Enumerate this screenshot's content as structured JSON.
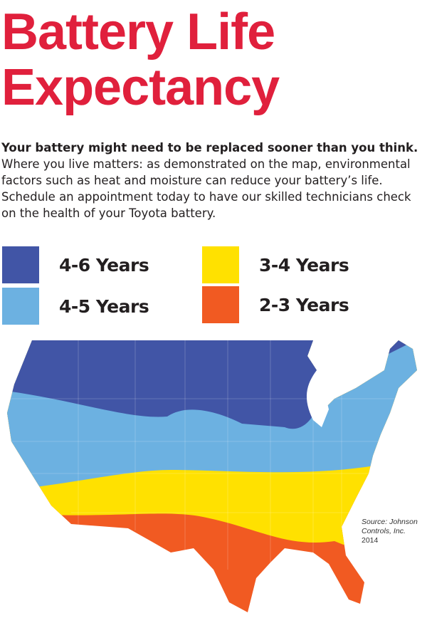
{
  "title": {
    "line1": "Battery Life",
    "line2": "Expectancy"
  },
  "intro": {
    "lead": "Your battery might need to be replaced sooner than you think.",
    "body": "Where you live matters: as demonstrated on the map, environmental factors such as heat and moisture can reduce your battery’s life. Schedule an appointment today to have our skilled technicians check on the health of your Toyota battery."
  },
  "legend": [
    {
      "label": "4-6 Years",
      "color": "#4155a6"
    },
    {
      "label": "4-5 Years",
      "color": "#6cb1e1"
    },
    {
      "label": "3-4 Years",
      "color": "#ffe100"
    },
    {
      "label": "2-3 Years",
      "color": "#f15a22"
    }
  ],
  "source": {
    "line1": "Source: Johnson",
    "line2": "Controls, Inc.",
    "line3": "2014"
  }
}
